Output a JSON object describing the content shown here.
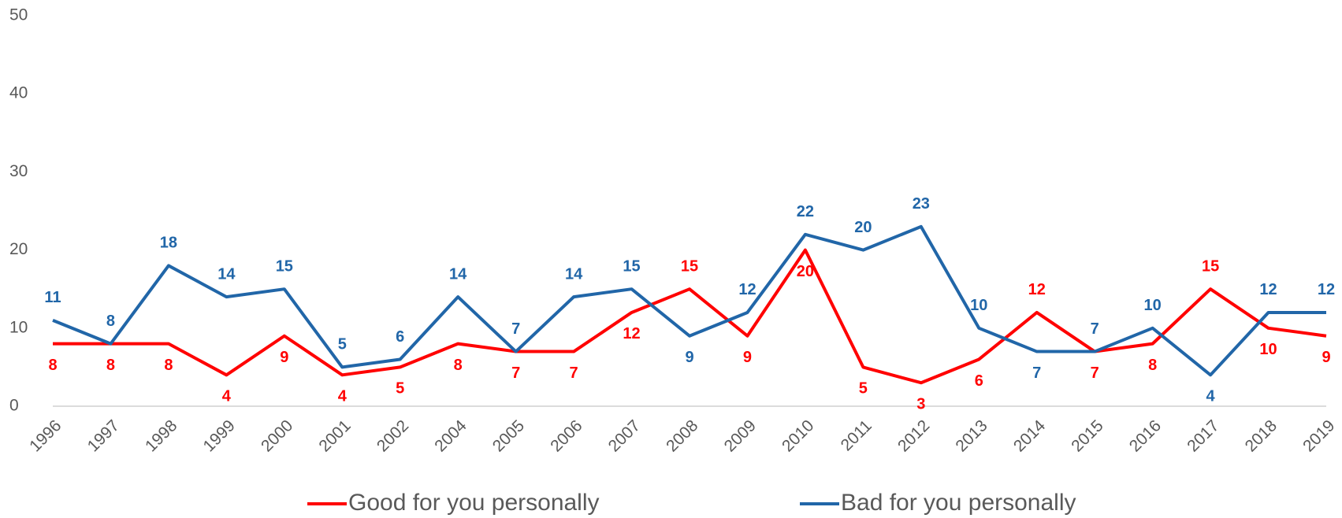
{
  "chart_data": {
    "type": "line",
    "categories": [
      "1996",
      "1997",
      "1998",
      "1999",
      "2000",
      "2001",
      "2002",
      "2004",
      "2005",
      "2006",
      "2007",
      "2008",
      "2009",
      "2010",
      "2011",
      "2012",
      "2013",
      "2014",
      "2015",
      "2016",
      "2017",
      "2018",
      "2019"
    ],
    "series": [
      {
        "name": "Good for you personally",
        "color": "#ff0000",
        "values": [
          8,
          8,
          8,
          4,
          9,
          4,
          5,
          8,
          7,
          7,
          12,
          15,
          9,
          20,
          5,
          3,
          6,
          12,
          7,
          8,
          15,
          10,
          9
        ]
      },
      {
        "name": "Bad for you personally",
        "color": "#2166a8",
        "values": [
          11,
          8,
          18,
          14,
          15,
          5,
          6,
          14,
          7,
          14,
          15,
          9,
          12,
          22,
          20,
          23,
          10,
          7,
          7,
          10,
          4,
          12,
          12
        ]
      }
    ],
    "ylim": [
      0,
      50
    ],
    "yticks": [
      0,
      10,
      20,
      30,
      40,
      50
    ],
    "legend": "bottom"
  }
}
